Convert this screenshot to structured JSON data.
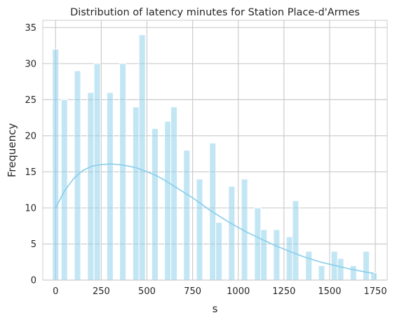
{
  "colors": {
    "bar_fill": "#87ceeb",
    "kde_line": "#87ceeb",
    "grid": "#cccccc",
    "axes_edge": "#cccccc",
    "background": "#ffffff"
  },
  "chart_data": {
    "type": "bar",
    "subtype": "histogram_with_kde",
    "title": "Distribution of latency minutes for Station Place-d'Armes",
    "xlabel": "s",
    "ylabel": "Frequency",
    "xlim": [
      -70,
      1815
    ],
    "ylim": [
      0,
      36
    ],
    "xticks": [
      0,
      250,
      500,
      750,
      1000,
      1250,
      1500,
      1750
    ],
    "yticks": [
      0,
      5,
      10,
      15,
      20,
      25,
      30,
      35
    ],
    "grid": true,
    "bin_width": 34.8,
    "bins": [
      {
        "x": 0,
        "count": 32
      },
      {
        "x": 48,
        "count": 25
      },
      {
        "x": 120,
        "count": 29
      },
      {
        "x": 192,
        "count": 26
      },
      {
        "x": 228,
        "count": 30
      },
      {
        "x": 298,
        "count": 26
      },
      {
        "x": 368,
        "count": 30
      },
      {
        "x": 440,
        "count": 24
      },
      {
        "x": 474,
        "count": 34
      },
      {
        "x": 544,
        "count": 21
      },
      {
        "x": 614,
        "count": 22
      },
      {
        "x": 648,
        "count": 24
      },
      {
        "x": 718,
        "count": 18
      },
      {
        "x": 788,
        "count": 14
      },
      {
        "x": 860,
        "count": 19
      },
      {
        "x": 894,
        "count": 8
      },
      {
        "x": 964,
        "count": 13
      },
      {
        "x": 1034,
        "count": 14
      },
      {
        "x": 1106,
        "count": 10
      },
      {
        "x": 1140,
        "count": 7
      },
      {
        "x": 1210,
        "count": 7
      },
      {
        "x": 1280,
        "count": 6
      },
      {
        "x": 1314,
        "count": 11
      },
      {
        "x": 1386,
        "count": 4
      },
      {
        "x": 1456,
        "count": 2
      },
      {
        "x": 1526,
        "count": 4
      },
      {
        "x": 1560,
        "count": 3
      },
      {
        "x": 1630,
        "count": 2
      },
      {
        "x": 1700,
        "count": 4
      },
      {
        "x": 1742,
        "count": 1
      }
    ],
    "kde": {
      "x": [
        0,
        50,
        100,
        150,
        200,
        250,
        300,
        350,
        400,
        450,
        500,
        550,
        600,
        650,
        700,
        750,
        800,
        850,
        900,
        950,
        1000,
        1050,
        1100,
        1150,
        1200,
        1250,
        1300,
        1350,
        1400,
        1450,
        1500,
        1550,
        1600,
        1650,
        1700,
        1740
      ],
      "y": [
        10,
        12.4,
        14.1,
        15.2,
        15.8,
        16.0,
        16.1,
        16.0,
        15.8,
        15.5,
        15.0,
        14.5,
        13.8,
        13.0,
        12.2,
        11.4,
        10.5,
        9.6,
        8.8,
        8.0,
        7.3,
        6.6,
        6.0,
        5.4,
        4.8,
        4.3,
        3.8,
        3.3,
        2.9,
        2.5,
        2.2,
        1.9,
        1.6,
        1.35,
        1.1,
        0.95
      ]
    }
  }
}
